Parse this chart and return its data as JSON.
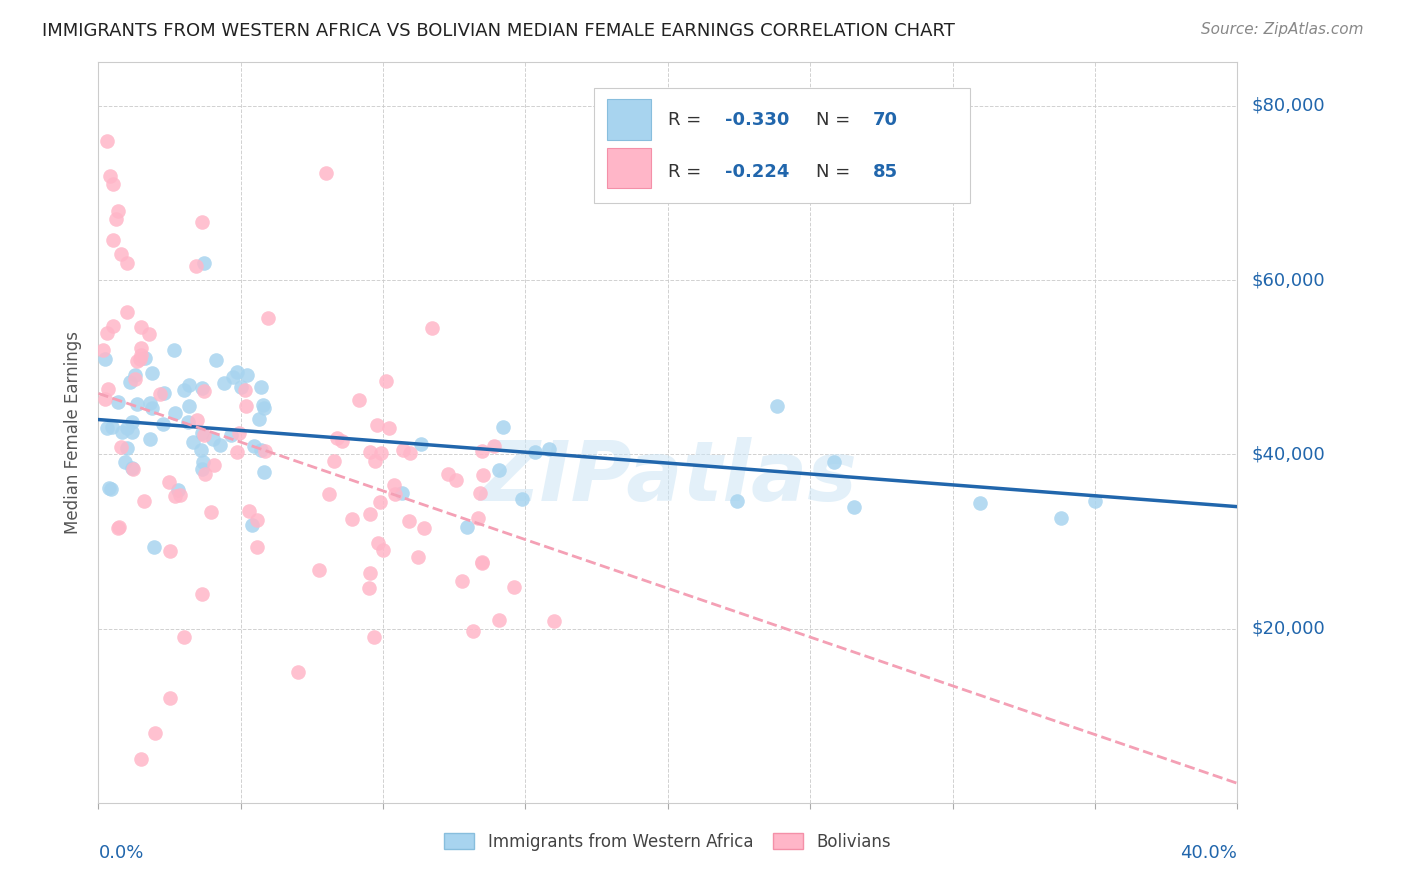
{
  "title": "IMMIGRANTS FROM WESTERN AFRICA VS BOLIVIAN MEDIAN FEMALE EARNINGS CORRELATION CHART",
  "source": "Source: ZipAtlas.com",
  "ylabel": "Median Female Earnings",
  "xlim": [
    0.0,
    0.4
  ],
  "ylim": [
    0,
    85000
  ],
  "blue_R": "-0.330",
  "blue_N": "70",
  "pink_R": "-0.224",
  "pink_N": "85",
  "blue_scatter_color": "#a8d4ef",
  "pink_scatter_color": "#ffb6c8",
  "trend_blue_color": "#2166ac",
  "trend_pink_color": "#f4a0b5",
  "watermark": "ZIPatlas",
  "legend_label_blue": "Immigrants from Western Africa",
  "legend_label_pink": "Bolivians",
  "ytick_vals": [
    20000,
    40000,
    60000,
    80000
  ],
  "ytick_labels": [
    "$20,000",
    "$40,000",
    "$60,000",
    "$80,000"
  ]
}
